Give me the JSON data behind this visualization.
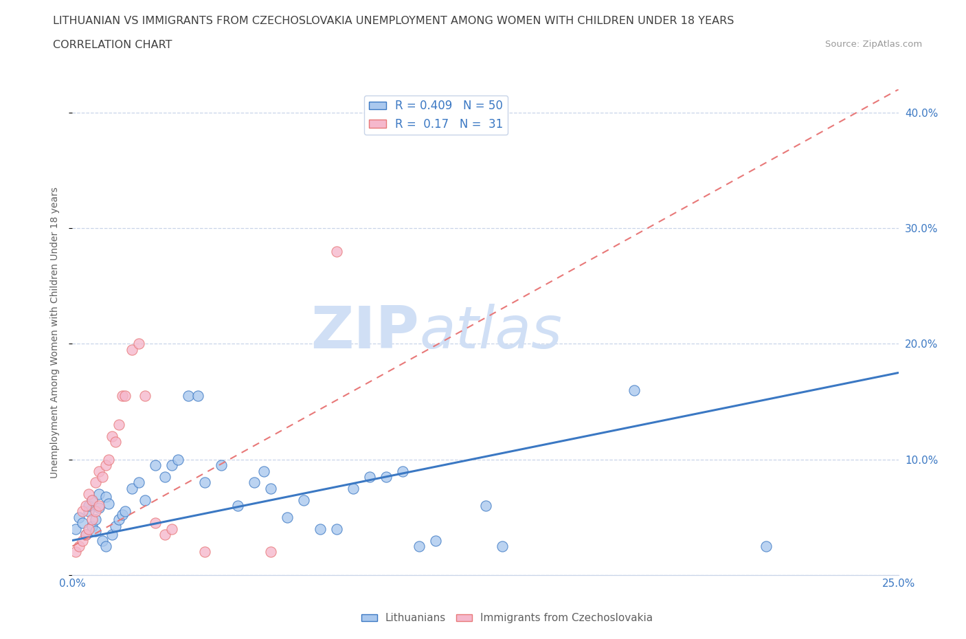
{
  "title_line1": "LITHUANIAN VS IMMIGRANTS FROM CZECHOSLOVAKIA UNEMPLOYMENT AMONG WOMEN WITH CHILDREN UNDER 18 YEARS",
  "title_line2": "CORRELATION CHART",
  "source": "Source: ZipAtlas.com",
  "ylabel": "Unemployment Among Women with Children Under 18 years",
  "xlim": [
    0.0,
    0.25
  ],
  "ylim": [
    0.0,
    0.42
  ],
  "watermark_zip": "ZIP",
  "watermark_atlas": "atlas",
  "blue_R": 0.409,
  "blue_N": 50,
  "pink_R": 0.17,
  "pink_N": 31,
  "blue_scatter_x": [
    0.001,
    0.002,
    0.003,
    0.004,
    0.005,
    0.005,
    0.006,
    0.006,
    0.007,
    0.007,
    0.008,
    0.008,
    0.009,
    0.01,
    0.01,
    0.011,
    0.012,
    0.013,
    0.014,
    0.015,
    0.016,
    0.018,
    0.02,
    0.022,
    0.025,
    0.028,
    0.03,
    0.032,
    0.035,
    0.038,
    0.04,
    0.045,
    0.05,
    0.055,
    0.058,
    0.06,
    0.065,
    0.07,
    0.075,
    0.08,
    0.085,
    0.09,
    0.095,
    0.1,
    0.105,
    0.11,
    0.125,
    0.13,
    0.17,
    0.21
  ],
  "blue_scatter_y": [
    0.04,
    0.05,
    0.045,
    0.035,
    0.055,
    0.06,
    0.042,
    0.065,
    0.048,
    0.038,
    0.07,
    0.058,
    0.03,
    0.025,
    0.068,
    0.062,
    0.035,
    0.042,
    0.048,
    0.052,
    0.055,
    0.075,
    0.08,
    0.065,
    0.095,
    0.085,
    0.095,
    0.1,
    0.155,
    0.155,
    0.08,
    0.095,
    0.06,
    0.08,
    0.09,
    0.075,
    0.05,
    0.065,
    0.04,
    0.04,
    0.075,
    0.085,
    0.085,
    0.09,
    0.025,
    0.03,
    0.06,
    0.025,
    0.16,
    0.025
  ],
  "pink_scatter_x": [
    0.001,
    0.002,
    0.003,
    0.003,
    0.004,
    0.004,
    0.005,
    0.005,
    0.006,
    0.006,
    0.007,
    0.007,
    0.008,
    0.008,
    0.009,
    0.01,
    0.011,
    0.012,
    0.013,
    0.014,
    0.015,
    0.016,
    0.018,
    0.02,
    0.022,
    0.025,
    0.028,
    0.03,
    0.04,
    0.06,
    0.08
  ],
  "pink_scatter_y": [
    0.02,
    0.025,
    0.03,
    0.055,
    0.035,
    0.06,
    0.04,
    0.07,
    0.048,
    0.065,
    0.055,
    0.08,
    0.06,
    0.09,
    0.085,
    0.095,
    0.1,
    0.12,
    0.115,
    0.13,
    0.155,
    0.155,
    0.195,
    0.2,
    0.155,
    0.045,
    0.035,
    0.04,
    0.02,
    0.02,
    0.28
  ],
  "blue_line_x0": 0.0,
  "blue_line_y0": 0.03,
  "blue_line_x1": 0.25,
  "blue_line_y1": 0.175,
  "pink_line_x0": 0.0,
  "pink_line_y0": 0.025,
  "pink_line_x1": 0.25,
  "pink_line_y1": 0.42,
  "blue_line_color": "#3b78c3",
  "pink_line_color": "#e87878",
  "blue_scatter_color": "#aac8ee",
  "pink_scatter_color": "#f5b8cc",
  "blue_edge_color": "#3b78c3",
  "pink_edge_color": "#e87878",
  "grid_color": "#c8d4e8",
  "background_color": "#ffffff",
  "title_color": "#404040",
  "axis_color": "#606060",
  "tick_color": "#3b78c3",
  "legend_text_color": "#3b78c3",
  "watermark_color": "#d0dff5"
}
